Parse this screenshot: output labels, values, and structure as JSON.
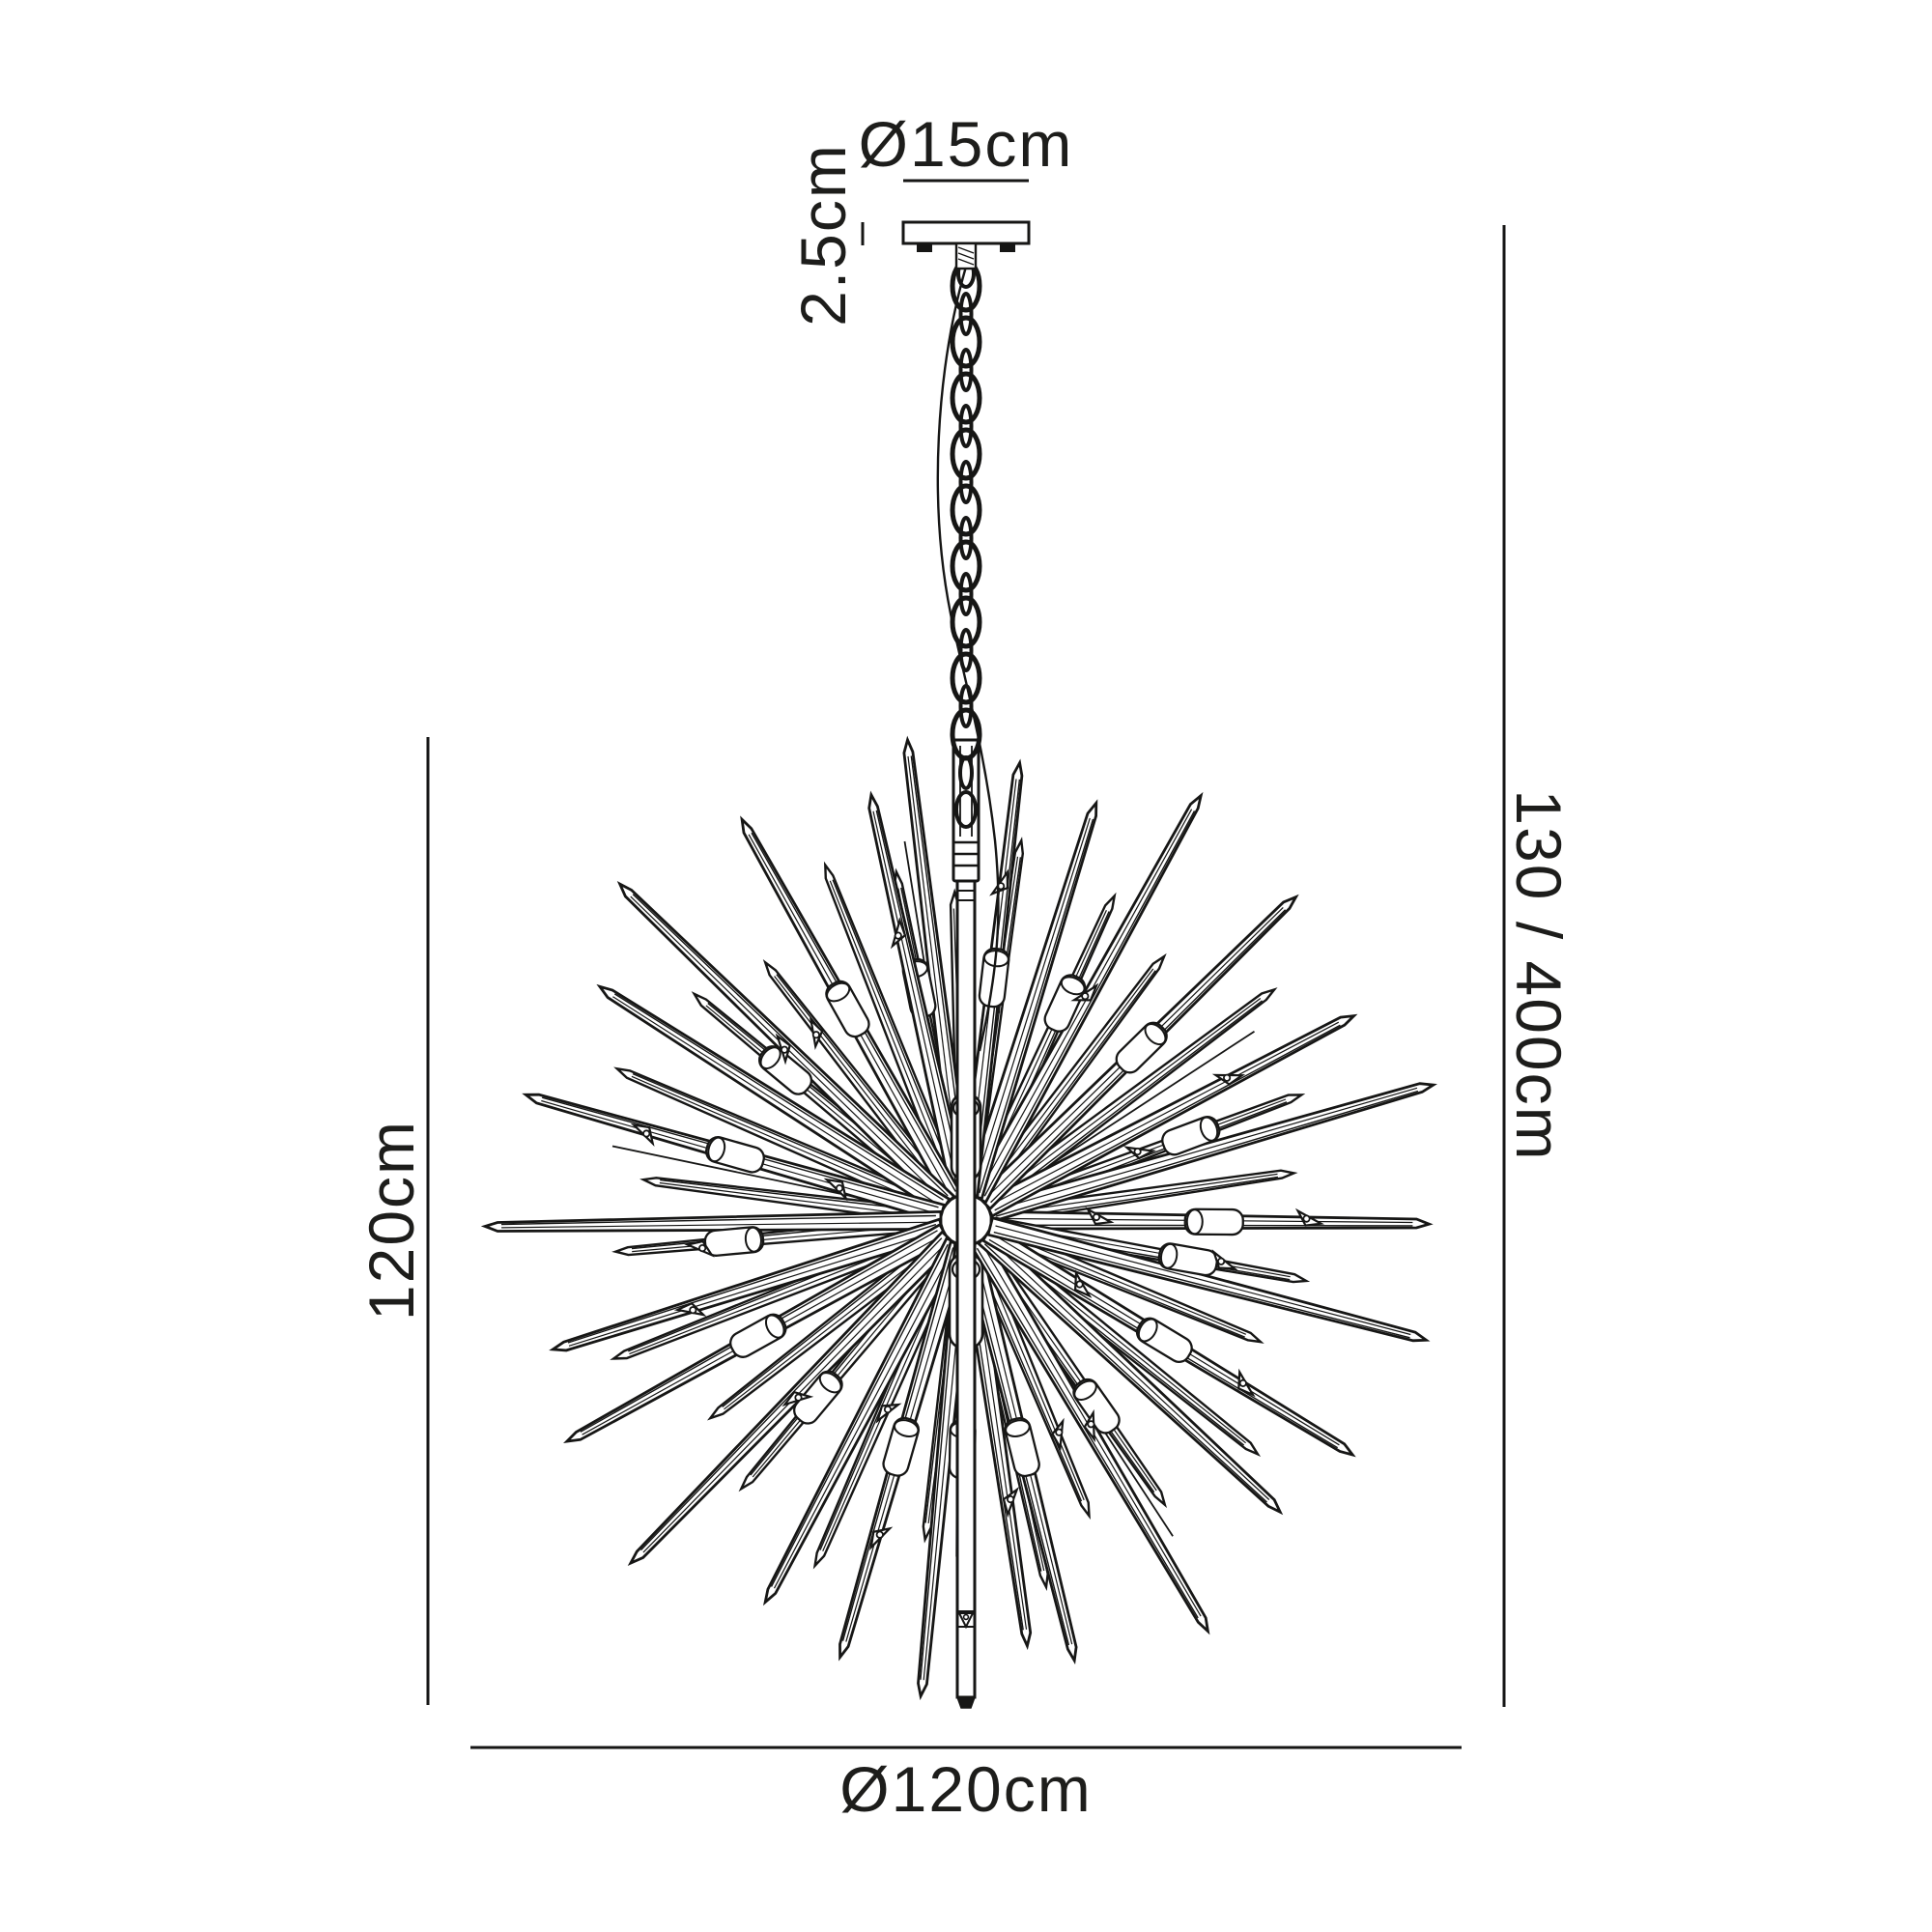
{
  "colors": {
    "ink": "#161615",
    "text": "#1d1d1b",
    "background": "#ffffff"
  },
  "labels": {
    "plate_diameter": "Ø15cm",
    "plate_height": "2.5cm",
    "drop_height": "130 / 400cm",
    "fitting_height": "120cm",
    "fitting_diameter": "Ø120cm"
  },
  "figure": {
    "type": "technical-line-drawing",
    "subject": "sputnik starburst chandelier pendant with ceiling plate and chain suspension",
    "ray_directions": 26
  }
}
